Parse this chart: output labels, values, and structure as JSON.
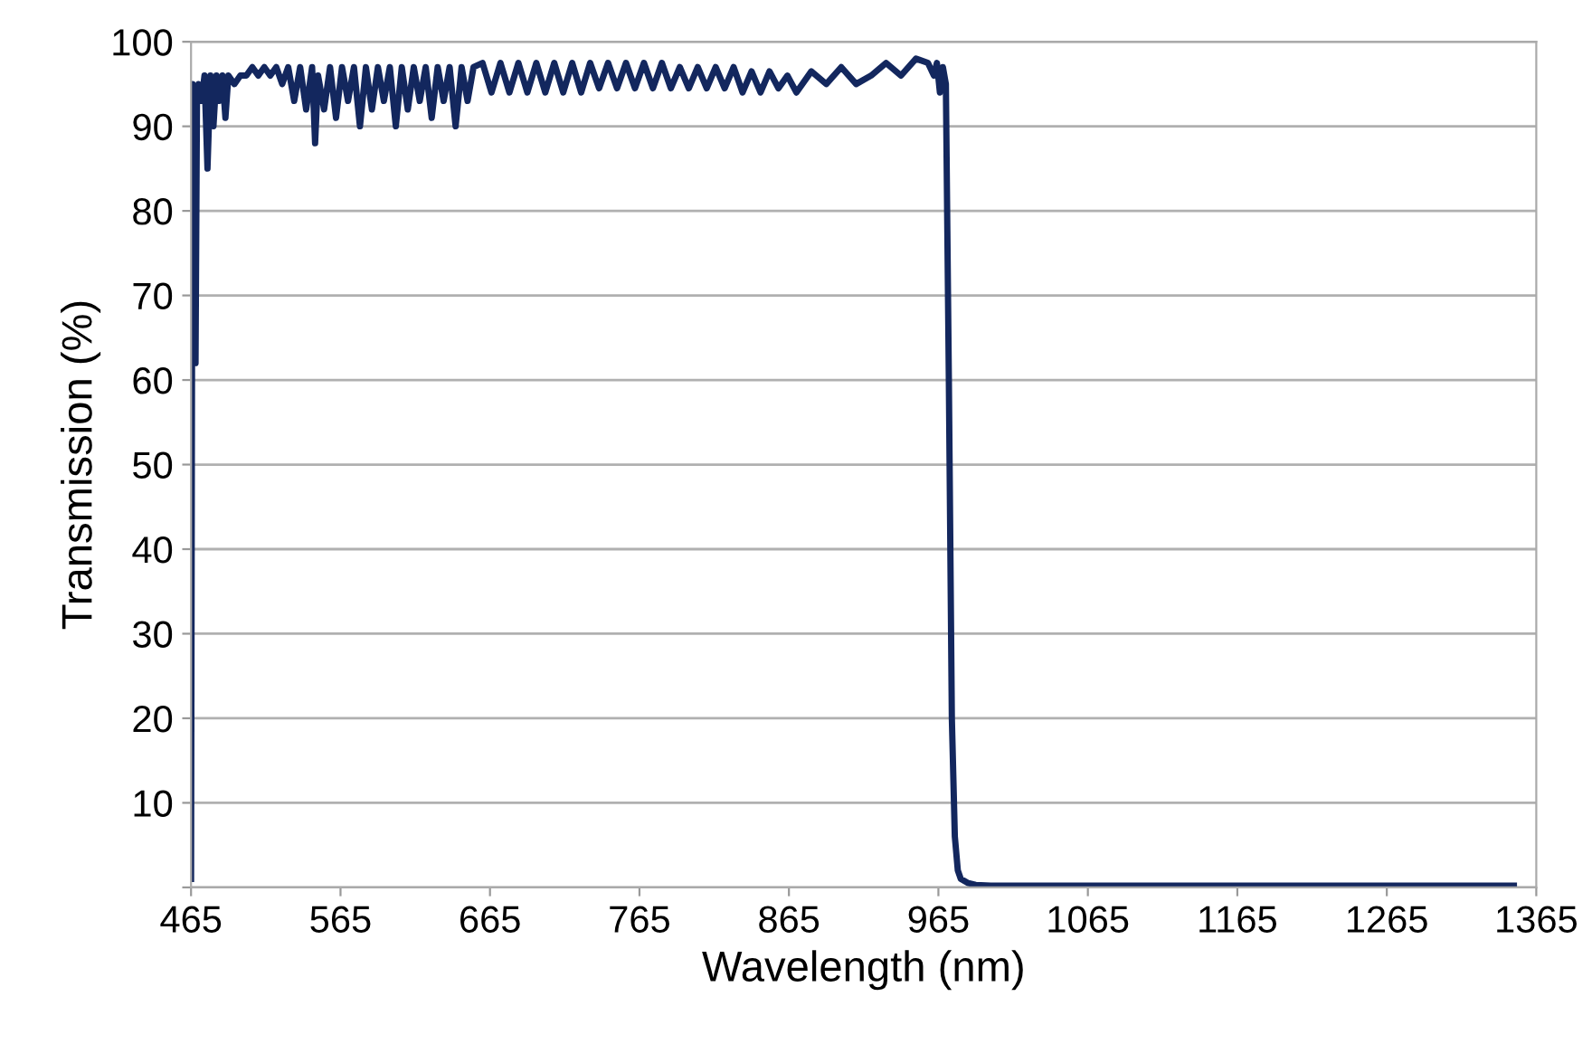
{
  "chart_data": {
    "type": "line",
    "xlabel": "Wavelength (nm)",
    "ylabel": "Transmission (%)",
    "xlim": [
      465,
      1365
    ],
    "ylim": [
      0,
      100
    ],
    "xticks": [
      465,
      565,
      665,
      765,
      865,
      965,
      1065,
      1165,
      1265,
      1365
    ],
    "yticks": [
      {
        "value": 0,
        "label": null
      },
      10,
      20,
      30,
      40,
      50,
      60,
      70,
      80,
      90,
      100
    ],
    "grid": "y",
    "legend": false,
    "marker": "none",
    "line_style": "solid",
    "series": [
      {
        "color": "#13275e",
        "x": [
          465,
          466,
          467,
          468,
          469,
          470,
          472,
          474,
          476,
          478,
          480,
          482,
          484,
          486,
          488,
          490,
          494,
          498,
          502,
          506,
          510,
          514,
          518,
          522,
          526,
          530,
          534,
          538,
          542,
          546,
          548,
          550,
          554,
          558,
          562,
          566,
          570,
          574,
          578,
          582,
          586,
          590,
          594,
          598,
          602,
          606,
          610,
          614,
          618,
          622,
          626,
          630,
          634,
          638,
          642,
          646,
          650,
          654,
          660,
          666,
          672,
          678,
          684,
          690,
          696,
          702,
          708,
          714,
          720,
          726,
          732,
          738,
          744,
          750,
          756,
          762,
          768,
          774,
          780,
          786,
          792,
          798,
          804,
          810,
          816,
          822,
          828,
          834,
          840,
          846,
          852,
          858,
          864,
          870,
          880,
          890,
          900,
          910,
          920,
          930,
          940,
          950,
          958,
          962,
          964,
          966,
          968,
          970,
          972,
          974,
          976,
          978,
          980,
          985,
          990,
          1000,
          1050,
          1100,
          1200,
          1300,
          1350
        ],
        "values": [
          1,
          95,
          70,
          62,
          94,
          95,
          93,
          96,
          85,
          96,
          90,
          96,
          93,
          96,
          91,
          96,
          95,
          96,
          96,
          97,
          96,
          97,
          96,
          97,
          95,
          97,
          93,
          97,
          92,
          97,
          88,
          96,
          92,
          97,
          91,
          97,
          93,
          97,
          90,
          97,
          92,
          97,
          93,
          97,
          90,
          97,
          92,
          97,
          93,
          97,
          91,
          97,
          93,
          97,
          90,
          97,
          93,
          97,
          97.5,
          94,
          97.5,
          94,
          97.5,
          94,
          97.5,
          94,
          97.5,
          94,
          97.5,
          94,
          97.5,
          94.5,
          97.5,
          94.5,
          97.5,
          94.5,
          97.5,
          94.5,
          97.5,
          94.5,
          97,
          94.5,
          97,
          94.5,
          97,
          94.5,
          97,
          94,
          96.5,
          94,
          96.5,
          94.5,
          96,
          94,
          96.5,
          95,
          97,
          95,
          96,
          97.5,
          96,
          98,
          97.5,
          96,
          97.5,
          94,
          97,
          95,
          60,
          20,
          6,
          2,
          1,
          0.5,
          0.3,
          0.2,
          0.2,
          0.2,
          0.2,
          0.2,
          0.2
        ]
      }
    ]
  }
}
